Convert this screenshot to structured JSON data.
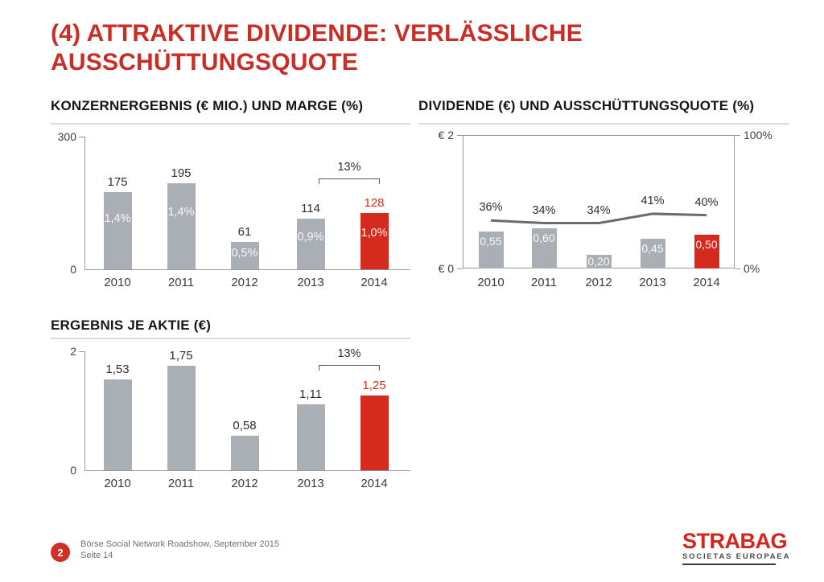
{
  "slide": {
    "title_line1": "(4) ATTRAKTIVE DIVIDENDE: VERLÄSSLICHE",
    "title_line2": "AUSSCHÜTTUNGSQUOTE"
  },
  "colors": {
    "title_red": "#c92d26",
    "bar_red": "#d52b1e",
    "bar_gray": "#a9afb5",
    "line_gray": "#6a6b6d"
  },
  "chart_data": [
    {
      "type": "bar",
      "title": "KONZERNERGEBNIS (€ MIO.) UND MARGE (%)",
      "categories": [
        "2010",
        "2011",
        "2012",
        "2013",
        "2014"
      ],
      "values": [
        175,
        195,
        61,
        114,
        128
      ],
      "value_labels": [
        "175",
        "195",
        "61",
        "114",
        "128"
      ],
      "inner_labels": [
        "1,4%",
        "1,4%",
        "0,5%",
        "0,9%",
        "1,0%"
      ],
      "ylim": [
        0,
        300
      ],
      "y_axis": {
        "max_label": "300",
        "min_label": "0"
      },
      "highlight_index": 4,
      "annotation_bracket": {
        "label": "13%",
        "between": [
          "2013",
          "2014"
        ]
      },
      "grid": false,
      "legend": "none"
    },
    {
      "type": "bar+line",
      "title": "DIVIDENDE (€) UND AUSSCHÜTTUNGSQUOTE (%)",
      "categories": [
        "2010",
        "2011",
        "2012",
        "2013",
        "2014"
      ],
      "bar_series": {
        "name": "Dividende (€)",
        "values": [
          0.55,
          0.6,
          0.2,
          0.45,
          0.5
        ],
        "labels": [
          "0,55",
          "0,60",
          "0,20",
          "0,45",
          "0,50"
        ]
      },
      "line_series": {
        "name": "Ausschüttungsquote (%)",
        "values": [
          36,
          34,
          34,
          41,
          40
        ],
        "labels": [
          "36%",
          "34%",
          "34%",
          "41%",
          "40%"
        ]
      },
      "ylim_left": [
        0,
        2
      ],
      "ylim_right": [
        0,
        100
      ],
      "left_axis": {
        "max_label": "€ 2",
        "min_label": "€ 0"
      },
      "right_axis": {
        "max_label": "100%",
        "min_label": "0%"
      },
      "highlight_index": 4,
      "grid": false,
      "legend": "none"
    },
    {
      "type": "bar",
      "title": "ERGEBNIS JE AKTIE (€)",
      "categories": [
        "2010",
        "2011",
        "2012",
        "2013",
        "2014"
      ],
      "values": [
        1.53,
        1.75,
        0.58,
        1.11,
        1.25
      ],
      "value_labels": [
        "1,53",
        "1,75",
        "0,58",
        "1,11",
        "1,25"
      ],
      "ylim": [
        0,
        2
      ],
      "y_axis": {
        "max_label": "2",
        "min_label": "0"
      },
      "highlight_index": 4,
      "annotation_bracket": {
        "label": "13%",
        "between": [
          "2013",
          "2014"
        ]
      },
      "grid": false,
      "legend": "none"
    }
  ],
  "footer": {
    "page_badge": "2",
    "line1": "Börse Social Network Roadshow, September 2015",
    "line2": "Seite 14"
  },
  "logo": {
    "name": "STRABAG",
    "subtitle": "SOCIETAS EUROPAEA"
  }
}
